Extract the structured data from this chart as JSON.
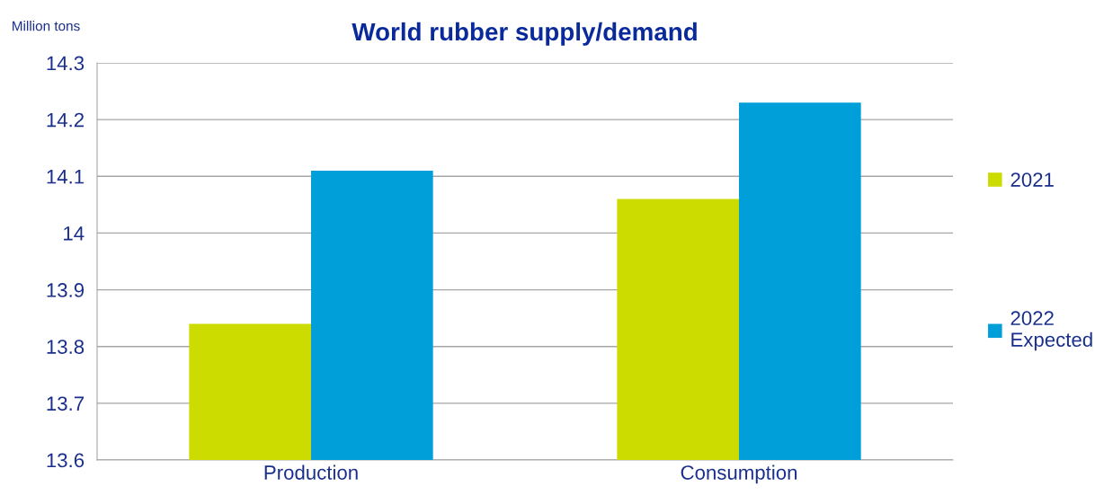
{
  "chart_data": {
    "type": "bar",
    "title": "World rubber supply/demand",
    "ylabel": "Million tons",
    "categories": [
      "Production",
      "Consumption"
    ],
    "series": [
      {
        "name": "2021",
        "color": "#ccdb00",
        "values": [
          13.84,
          14.06
        ]
      },
      {
        "name": "2022\nExpected",
        "color": "#009fda",
        "values": [
          14.11,
          14.23
        ]
      }
    ],
    "ylim": [
      13.6,
      14.3
    ],
    "yticks": [
      13.6,
      13.7,
      13.8,
      13.9,
      14,
      14.1,
      14.2,
      14.3
    ],
    "grid": "y",
    "legend": "right"
  }
}
